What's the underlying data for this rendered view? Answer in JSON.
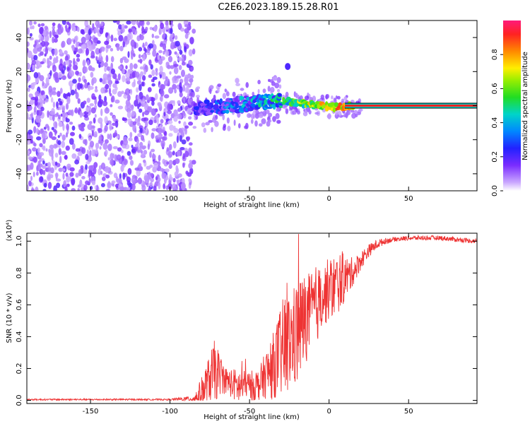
{
  "title": "C2E6.2023.189.15.28.R01",
  "chart_data": [
    {
      "type": "heatmap",
      "xlabel": "Height of straight line (km)",
      "ylabel": "Frequency (Hz)",
      "xlim": [
        -190,
        93
      ],
      "ylim": [
        -50,
        50
      ],
      "x_ticks": [
        "-150",
        "-100",
        "-50",
        "0",
        "50"
      ],
      "x_tick_values": [
        -150,
        -100,
        -50,
        0,
        50
      ],
      "y_ticks": [
        "40",
        "20",
        "0",
        "-20",
        "-40"
      ],
      "y_tick_values": [
        40,
        20,
        0,
        -20,
        -40
      ],
      "noise_region_km": [
        -190,
        -85
      ],
      "signal_track": [
        {
          "x": -85,
          "y": -2,
          "v": 0.25
        },
        {
          "x": -75,
          "y": -1,
          "v": 0.35
        },
        {
          "x": -65,
          "y": 0,
          "v": 0.4
        },
        {
          "x": -55,
          "y": 1,
          "v": 0.45
        },
        {
          "x": -45,
          "y": 2,
          "v": 0.5
        },
        {
          "x": -35,
          "y": 3,
          "v": 0.55
        },
        {
          "x": -25,
          "y": 2,
          "v": 0.65
        },
        {
          "x": -15,
          "y": 1,
          "v": 0.75
        },
        {
          "x": -5,
          "y": 0,
          "v": 0.85
        },
        {
          "x": 5,
          "y": -1,
          "v": 0.9
        },
        {
          "x": 15,
          "y": 0,
          "v": 0.95
        },
        {
          "x": 93,
          "y": 0,
          "v": 0.95
        }
      ],
      "outlier": {
        "x": -26,
        "y": 23
      },
      "colorbar": {
        "label": "Normalized spectral amplitude",
        "range": [
          0,
          1
        ],
        "ticks": [
          "0.0",
          "0.2",
          "0.4",
          "0.6",
          "0.8"
        ],
        "tick_values": [
          0,
          0.2,
          0.4,
          0.6,
          0.8
        ]
      }
    },
    {
      "type": "line",
      "xlabel": "Height of straight line (km)",
      "ylabel": "SNR (10 * v/v)",
      "y_multiplier": "(x10⁴)",
      "xlim": [
        -190,
        93
      ],
      "ylim": [
        -0.02,
        1.05
      ],
      "x_ticks": [
        "-150",
        "-100",
        "-50",
        "0",
        "50"
      ],
      "x_tick_values": [
        -150,
        -100,
        -50,
        0,
        50
      ],
      "y_ticks": [
        "1.0",
        "0.8",
        "0.6",
        "0.4",
        "0.2",
        "0.0"
      ],
      "y_tick_values": [
        1.0,
        0.8,
        0.6,
        0.4,
        0.2,
        0.0
      ],
      "series": [
        {
          "color": "#ee3333",
          "x": [
            -190,
            -150,
            -100,
            -85,
            -80,
            -75,
            -72,
            -68,
            -64,
            -60,
            -56,
            -52,
            -48,
            -44,
            -40,
            -36,
            -32,
            -28,
            -24,
            -20,
            -16,
            -12,
            -8,
            -4,
            0,
            4,
            8,
            12,
            16,
            20,
            25,
            30,
            35,
            40,
            50,
            60,
            70,
            80,
            93
          ],
          "y": [
            0.005,
            0.005,
            0.005,
            0.01,
            0.05,
            0.14,
            0.18,
            0.16,
            0.12,
            0.1,
            0.08,
            0.1,
            0.09,
            0.1,
            0.16,
            0.2,
            0.28,
            0.33,
            0.38,
            0.42,
            0.5,
            0.55,
            0.6,
            0.65,
            0.7,
            0.72,
            0.76,
            0.78,
            0.82,
            0.88,
            0.94,
            0.98,
            1.0,
            1.01,
            1.02,
            1.02,
            1.02,
            1.01,
            1.0
          ],
          "noise_amplitude": [
            0.005,
            0.005,
            0.005,
            0.02,
            0.1,
            0.15,
            0.2,
            0.12,
            0.08,
            0.1,
            0.12,
            0.08,
            0.1,
            0.1,
            0.15,
            0.2,
            0.25,
            0.35,
            0.3,
            0.35,
            0.3,
            0.25,
            0.25,
            0.2,
            0.2,
            0.2,
            0.18,
            0.12,
            0.08,
            0.06,
            0.04,
            0.03,
            0.02,
            0.015,
            0.015,
            0.015,
            0.015,
            0.015,
            0.015
          ]
        }
      ]
    }
  ]
}
